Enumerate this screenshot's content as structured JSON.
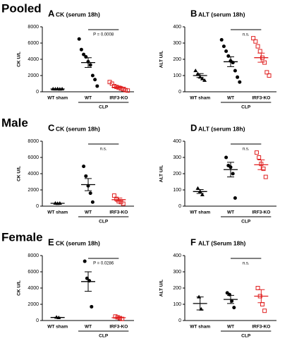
{
  "row_labels": [
    "Pooled",
    "Male",
    "Female"
  ],
  "chart_data": [
    {
      "type": "dot",
      "letter": "A",
      "title": "CK (serum 18h)",
      "ylabel": "CK U/L",
      "group_label": "CLP",
      "ylim": [
        0,
        8000
      ],
      "yticks": [
        0,
        2000,
        4000,
        6000,
        8000
      ],
      "annotation": "P = 0.0008",
      "groups": [
        {
          "name": "WT sham",
          "color": "#000000",
          "marker": "triangle",
          "values": [
            350,
            340,
            360,
            330,
            350
          ],
          "mean": 350,
          "sem": 10
        },
        {
          "name": "WT",
          "color": "#000000",
          "marker": "circle",
          "values": [
            6500,
            5200,
            4600,
            4300,
            3700,
            3300,
            2000,
            1500,
            700
          ],
          "mean": 3600,
          "sem": 600
        },
        {
          "name": "IRF3-KO",
          "color": "#e02020",
          "marker": "square",
          "values": [
            1200,
            1000,
            700,
            600,
            500,
            400,
            300,
            200,
            150
          ],
          "mean": 550,
          "sem": 120
        }
      ]
    },
    {
      "type": "dot",
      "letter": "B",
      "title": "ALT (serum 18h)",
      "ylabel": "ALT U/L",
      "group_label": "CLP",
      "ylim": [
        0,
        400
      ],
      "yticks": [
        0,
        100,
        200,
        300,
        400
      ],
      "annotation": "n.s.",
      "groups": [
        {
          "name": "WT sham",
          "color": "#000000",
          "marker": "triangle",
          "values": [
            130,
            110,
            90,
            80,
            70
          ],
          "mean": 100,
          "sem": 12
        },
        {
          "name": "WT",
          "color": "#000000",
          "marker": "circle",
          "values": [
            320,
            280,
            250,
            220,
            190,
            180,
            130,
            90,
            60
          ],
          "mean": 185,
          "sem": 30
        },
        {
          "name": "IRF3-KO",
          "color": "#e02020",
          "marker": "square",
          "values": [
            330,
            310,
            280,
            250,
            210,
            180,
            120,
            100
          ],
          "mean": 210,
          "sem": 28
        }
      ]
    },
    {
      "type": "dot",
      "letter": "C",
      "title": "CK (serum 18h)",
      "ylabel": "CK U/L",
      "group_label": "CLP",
      "ylim": [
        0,
        8000
      ],
      "yticks": [
        0,
        2000,
        4000,
        6000,
        8000
      ],
      "annotation": "n.s.",
      "groups": [
        {
          "name": "WT sham",
          "color": "#000000",
          "marker": "triangle",
          "values": [
            360,
            330,
            350
          ],
          "mean": 350,
          "sem": 10
        },
        {
          "name": "WT",
          "color": "#000000",
          "marker": "circle",
          "values": [
            4900,
            3700,
            2500,
            1600,
            500
          ],
          "mean": 2650,
          "sem": 750
        },
        {
          "name": "IRF3-KO",
          "color": "#e02020",
          "marker": "square",
          "values": [
            1300,
            900,
            600,
            500,
            300
          ],
          "mean": 800,
          "sem": 200
        }
      ]
    },
    {
      "type": "dot",
      "letter": "D",
      "title": "ALT (serum 18h)",
      "ylabel": "ALT U/L",
      "group_label": "CLP",
      "ylim": [
        0,
        400
      ],
      "yticks": [
        0,
        100,
        200,
        300,
        400
      ],
      "annotation": "n.s.",
      "groups": [
        {
          "name": "WT sham",
          "color": "#000000",
          "marker": "triangle",
          "values": [
            110,
            90,
            70
          ],
          "mean": 90,
          "sem": 12
        },
        {
          "name": "WT",
          "color": "#000000",
          "marker": "circle",
          "values": [
            300,
            250,
            240,
            200,
            50
          ],
          "mean": 225,
          "sem": 45
        },
        {
          "name": "IRF3-KO",
          "color": "#e02020",
          "marker": "square",
          "values": [
            330,
            300,
            260,
            230,
            180
          ],
          "mean": 255,
          "sem": 30
        }
      ]
    },
    {
      "type": "dot",
      "letter": "E",
      "title": "CK (serum 18h)",
      "ylabel": "CK U/L",
      "group_label": "CLP",
      "ylim": [
        0,
        8000
      ],
      "yticks": [
        0,
        2000,
        4000,
        6000,
        8000
      ],
      "annotation": "P = 0.0286",
      "groups": [
        {
          "name": "WT sham",
          "color": "#000000",
          "marker": "triangle",
          "values": [
            400,
            350
          ],
          "mean": 375,
          "sem": 25
        },
        {
          "name": "WT",
          "color": "#000000",
          "marker": "circle",
          "values": [
            7300,
            5200,
            4900,
            1700
          ],
          "mean": 4800,
          "sem": 1200
        },
        {
          "name": "IRF3-KO",
          "color": "#e02020",
          "marker": "square",
          "values": [
            500,
            400,
            300,
            200
          ],
          "mean": 350,
          "sem": 60
        }
      ]
    },
    {
      "type": "dot",
      "letter": "F",
      "title": "ALT (Serum 18h)",
      "ylabel": "ALT U/L",
      "group_label": "CLP",
      "ylim": [
        0,
        400
      ],
      "yticks": [
        0,
        100,
        200,
        300,
        400
      ],
      "annotation": "n.s.",
      "groups": [
        {
          "name": "WT sham",
          "color": "#000000",
          "marker": "triangle",
          "values": [
            145,
            70
          ],
          "mean": 105,
          "sem": 40
        },
        {
          "name": "WT",
          "color": "#000000",
          "marker": "circle",
          "values": [
            170,
            160,
            120,
            80
          ],
          "mean": 130,
          "sem": 25
        },
        {
          "name": "IRF3-KO",
          "color": "#e02020",
          "marker": "square",
          "values": [
            200,
            150,
            100,
            60
          ],
          "mean": 150,
          "sem": 40
        }
      ]
    }
  ]
}
